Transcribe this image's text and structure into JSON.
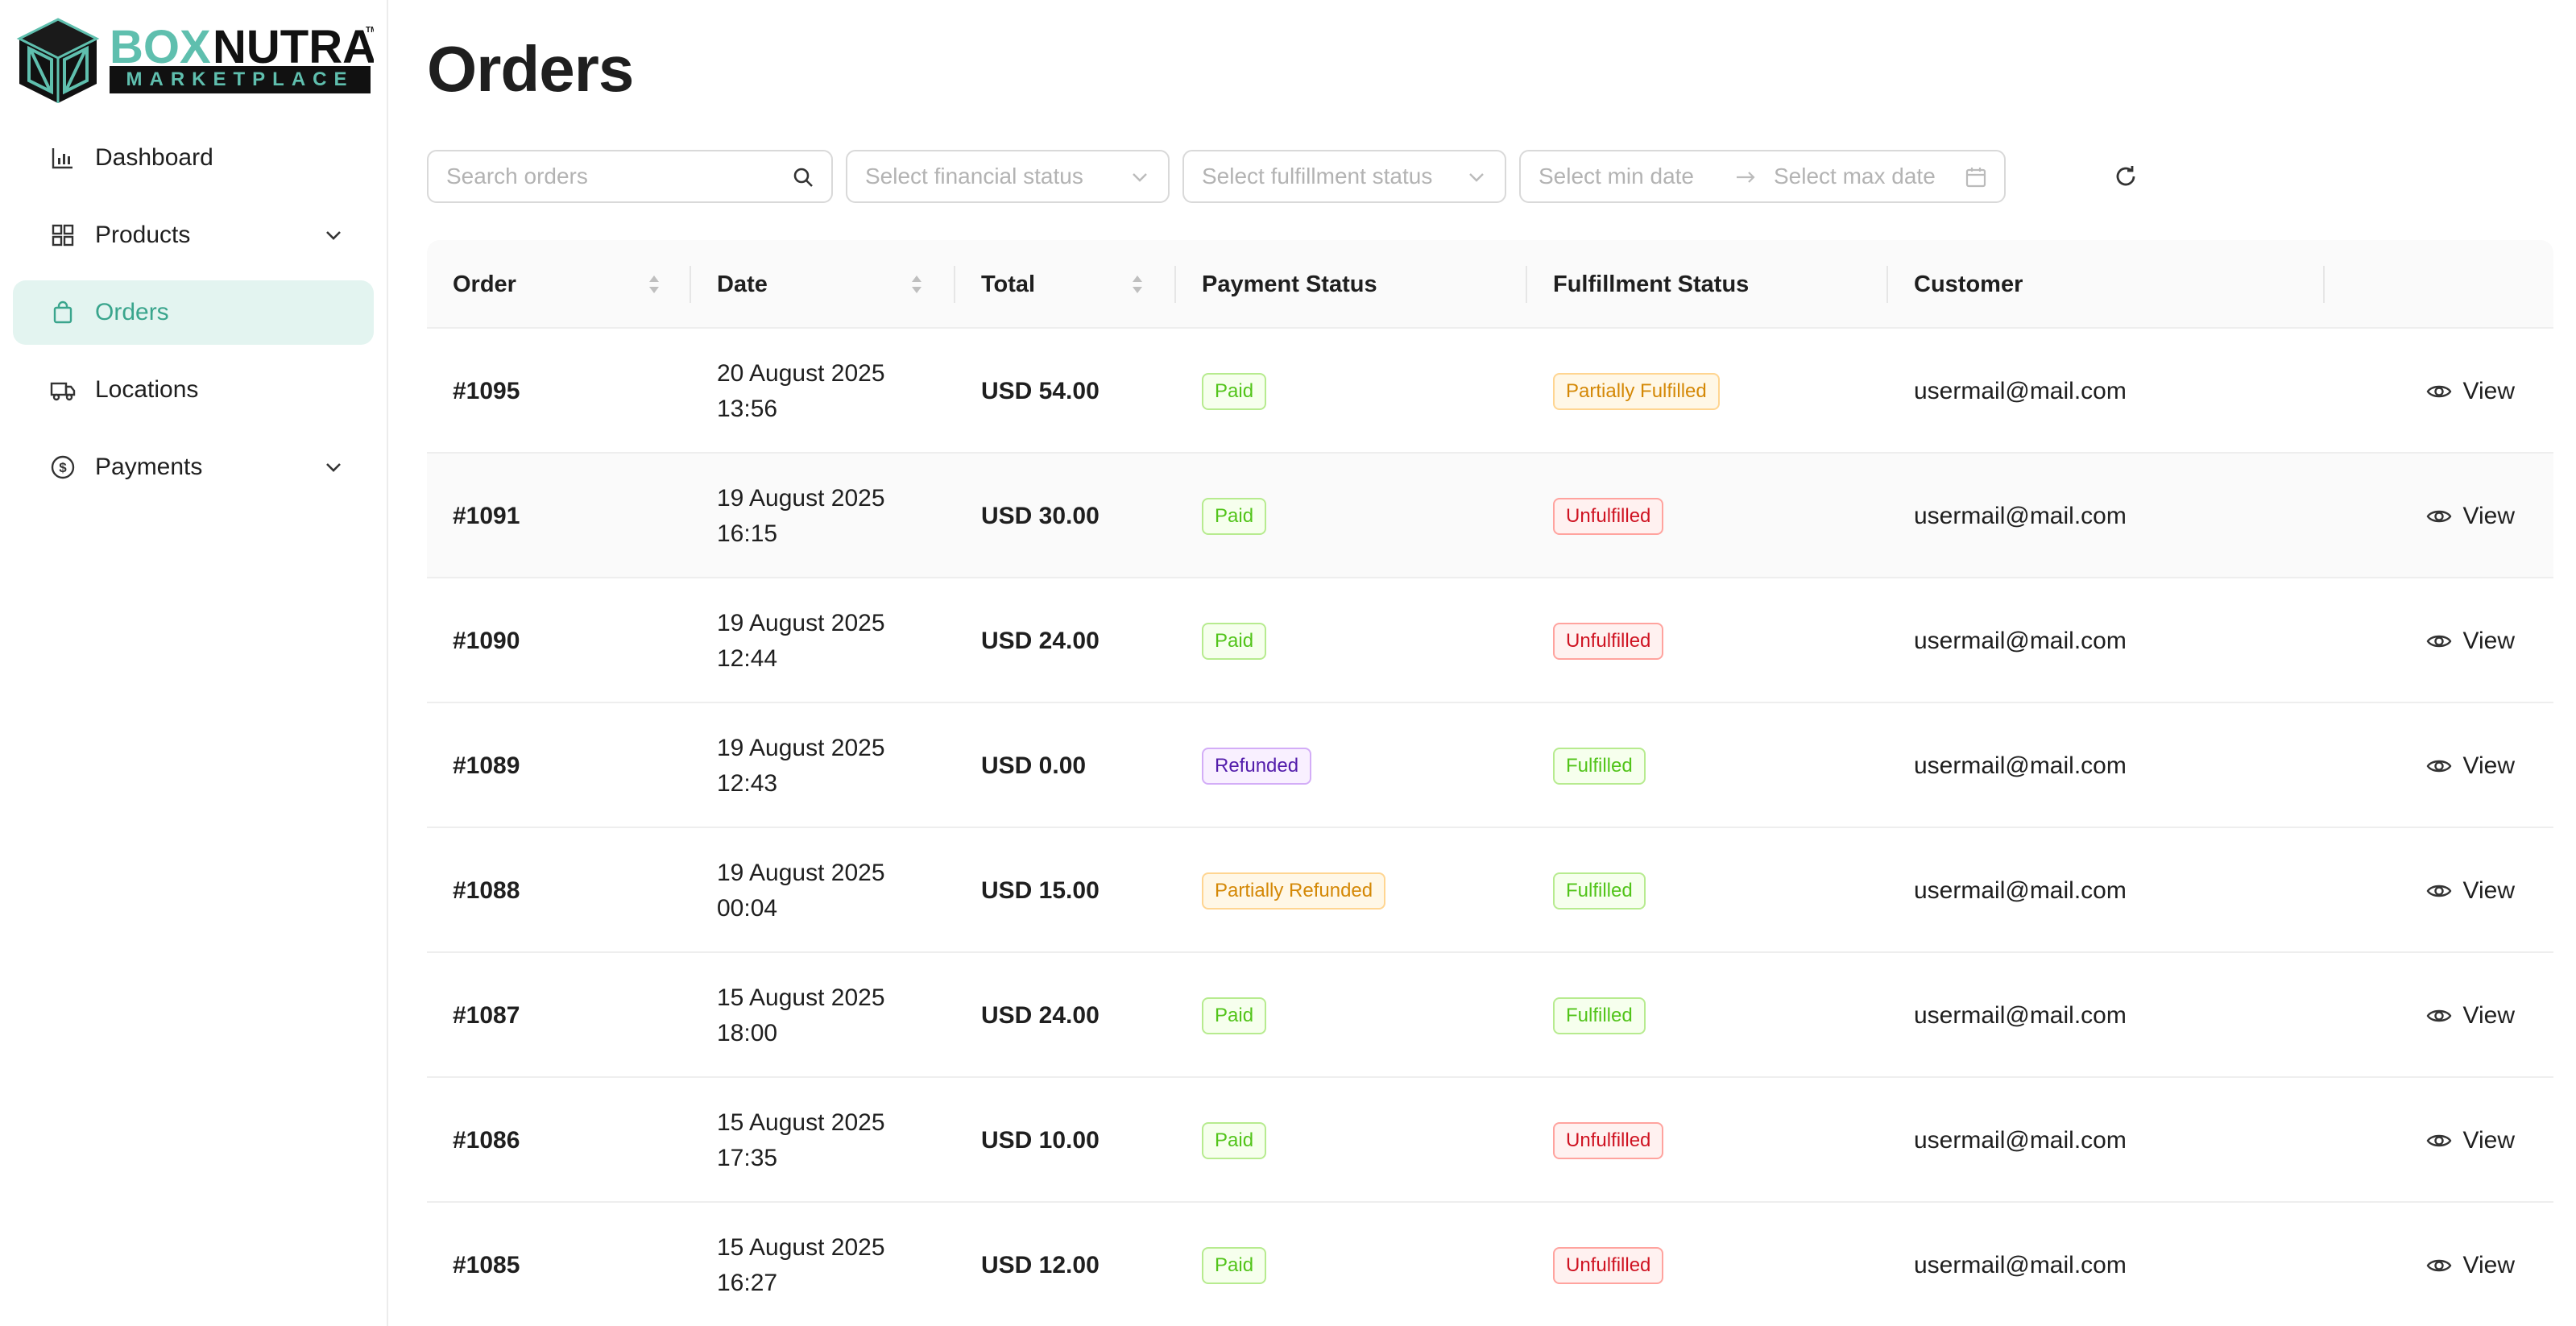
{
  "brand": {
    "name_part1": "BOX",
    "name_part2": "NUTRA",
    "sub": "MARKETPLACE",
    "tm": "TM",
    "accent": "#5fbfae"
  },
  "sidebar": {
    "items": [
      {
        "label": "Dashboard",
        "icon": "bar-chart-icon"
      },
      {
        "label": "Products",
        "icon": "grid-icon",
        "expandable": true
      },
      {
        "label": "Orders",
        "icon": "shopping-bag-icon",
        "active": true
      },
      {
        "label": "Locations",
        "icon": "truck-icon"
      },
      {
        "label": "Payments",
        "icon": "dollar-circle-icon",
        "expandable": true
      }
    ]
  },
  "page": {
    "title": "Orders"
  },
  "filters": {
    "search_placeholder": "Search orders",
    "financial_placeholder": "Select financial status",
    "fulfillment_placeholder": "Select fulfillment status",
    "min_date_placeholder": "Select min date",
    "max_date_placeholder": "Select max date"
  },
  "table": {
    "columns": [
      "Order",
      "Date",
      "Total",
      "Payment Status",
      "Fulfillment Status",
      "Customer"
    ],
    "view_label": "View",
    "rows": [
      {
        "order": "#1095",
        "date1": "20 August 2025",
        "date2": "13:56",
        "total": "USD 54.00",
        "payment": "Paid",
        "payment_color": "green",
        "fulfillment": "Partially Fulfilled",
        "fulfillment_color": "orange",
        "customer": "usermail@mail.com"
      },
      {
        "order": "#1091",
        "date1": "19 August 2025",
        "date2": "16:15",
        "total": "USD 30.00",
        "payment": "Paid",
        "payment_color": "green",
        "fulfillment": "Unfulfilled",
        "fulfillment_color": "red",
        "customer": "usermail@mail.com"
      },
      {
        "order": "#1090",
        "date1": "19 August 2025",
        "date2": "12:44",
        "total": "USD 24.00",
        "payment": "Paid",
        "payment_color": "green",
        "fulfillment": "Unfulfilled",
        "fulfillment_color": "red",
        "customer": "usermail@mail.com"
      },
      {
        "order": "#1089",
        "date1": "19 August 2025",
        "date2": "12:43",
        "total": "USD 0.00",
        "payment": "Refunded",
        "payment_color": "purple",
        "fulfillment": "Fulfilled",
        "fulfillment_color": "green",
        "customer": "usermail@mail.com"
      },
      {
        "order": "#1088",
        "date1": "19 August 2025",
        "date2": "00:04",
        "total": "USD 15.00",
        "payment": "Partially Refunded",
        "payment_color": "orange",
        "fulfillment": "Fulfilled",
        "fulfillment_color": "green",
        "customer": "usermail@mail.com"
      },
      {
        "order": "#1087",
        "date1": "15 August 2025",
        "date2": "18:00",
        "total": "USD 24.00",
        "payment": "Paid",
        "payment_color": "green",
        "fulfillment": "Fulfilled",
        "fulfillment_color": "green",
        "customer": "usermail@mail.com"
      },
      {
        "order": "#1086",
        "date1": "15 August 2025",
        "date2": "17:35",
        "total": "USD 10.00",
        "payment": "Paid",
        "payment_color": "green",
        "fulfillment": "Unfulfilled",
        "fulfillment_color": "red",
        "customer": "usermail@mail.com"
      },
      {
        "order": "#1085",
        "date1": "15 August 2025",
        "date2": "16:27",
        "total": "USD 12.00",
        "payment": "Paid",
        "payment_color": "green",
        "fulfillment": "Unfulfilled",
        "fulfillment_color": "red",
        "customer": "usermail@mail.com"
      }
    ]
  }
}
